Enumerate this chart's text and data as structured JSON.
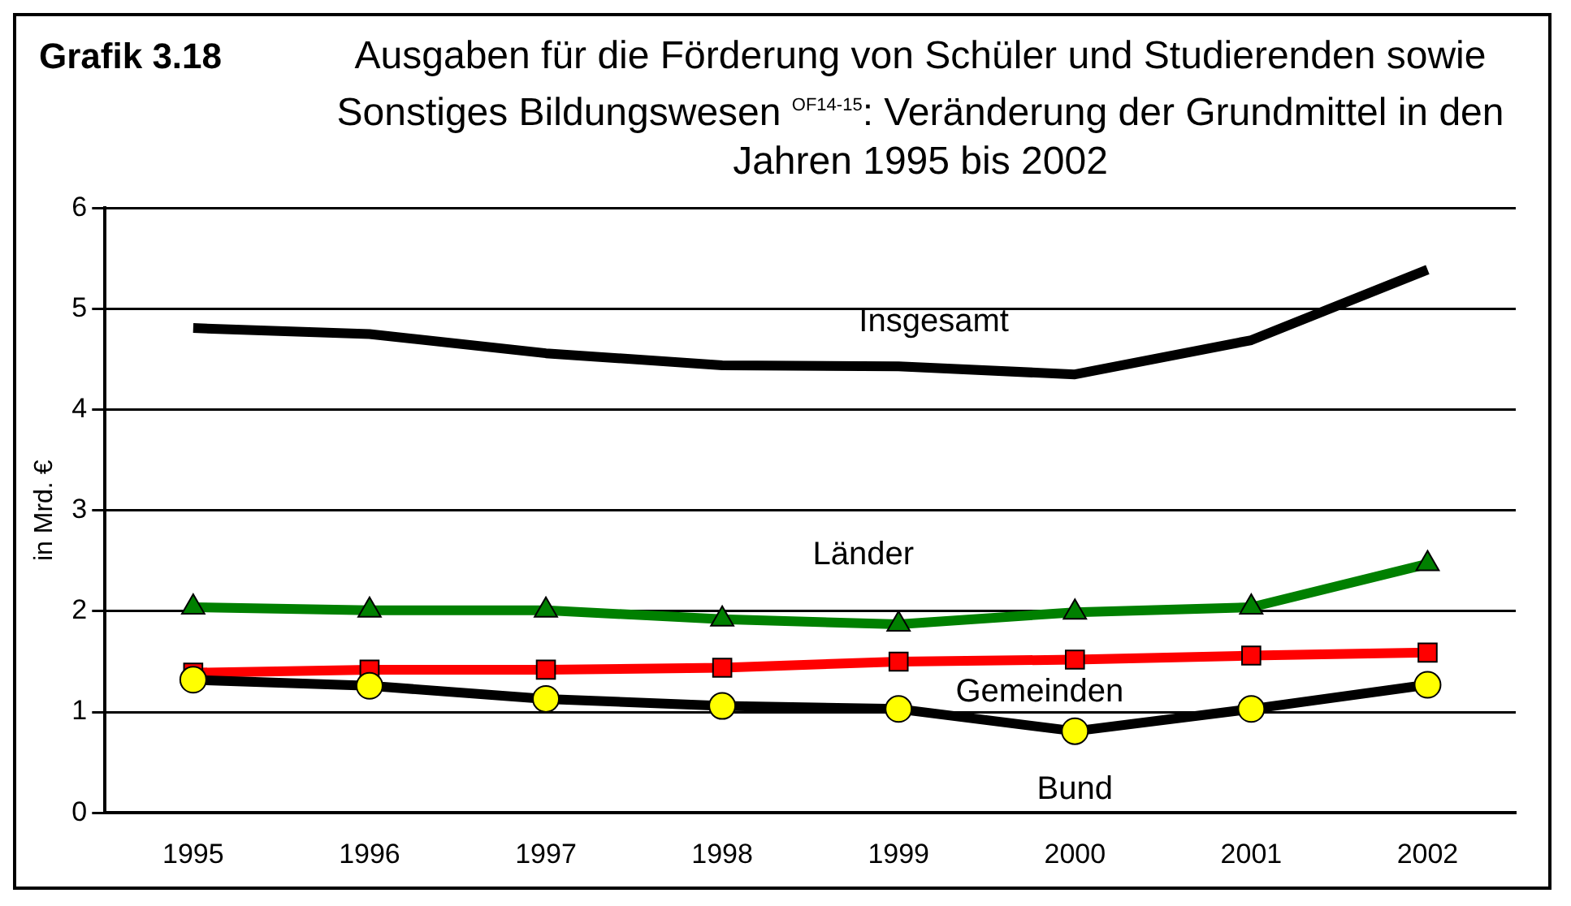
{
  "chart_data": {
    "type": "line",
    "title": "Grafik 3.18",
    "subtitle": "Ausgaben für die Förderung von Schüler und Studierenden sowie Sonstiges Bildungswesen $^{OF14-15}$: Veränderung der Grundmittel in den Jahren 1995 bis 2002",
    "ylabel": "in Mrd. €",
    "categories": [
      "1995",
      "1996",
      "1997",
      "1998",
      "1999",
      "2000",
      "2001",
      "2002"
    ],
    "series": [
      {
        "name": "Insgesamt",
        "color": "#000000",
        "marker": "none",
        "values": [
          4.81,
          4.75,
          4.56,
          4.44,
          4.43,
          4.35,
          4.69,
          5.39
        ]
      },
      {
        "name": "Länder",
        "color": "#008000",
        "marker": "triangle",
        "values": [
          2.04,
          2.01,
          2.01,
          1.92,
          1.87,
          1.99,
          2.04,
          2.47
        ]
      },
      {
        "name": "Gemeinden",
        "color": "#ff0000",
        "marker": "square",
        "values": [
          1.39,
          1.42,
          1.42,
          1.44,
          1.5,
          1.52,
          1.56,
          1.59
        ]
      },
      {
        "name": "Bund",
        "color": "#000000",
        "colors": [
          "#ffff00",
          "#ffff00",
          "#ffff00",
          "#ffff00",
          "#ffff00",
          "#ffff00",
          "#ffff00",
          "#ffff00"
        ],
        "marker": "circle",
        "values": [
          1.32,
          1.26,
          1.13,
          1.06,
          1.03,
          0.81,
          1.03,
          1.27
        ]
      }
    ],
    "ylim": [
      0,
      6
    ],
    "yticks": [
      0,
      1,
      2,
      3,
      4,
      5,
      6
    ],
    "grid": "y",
    "legend": false,
    "line_style": "solid"
  }
}
